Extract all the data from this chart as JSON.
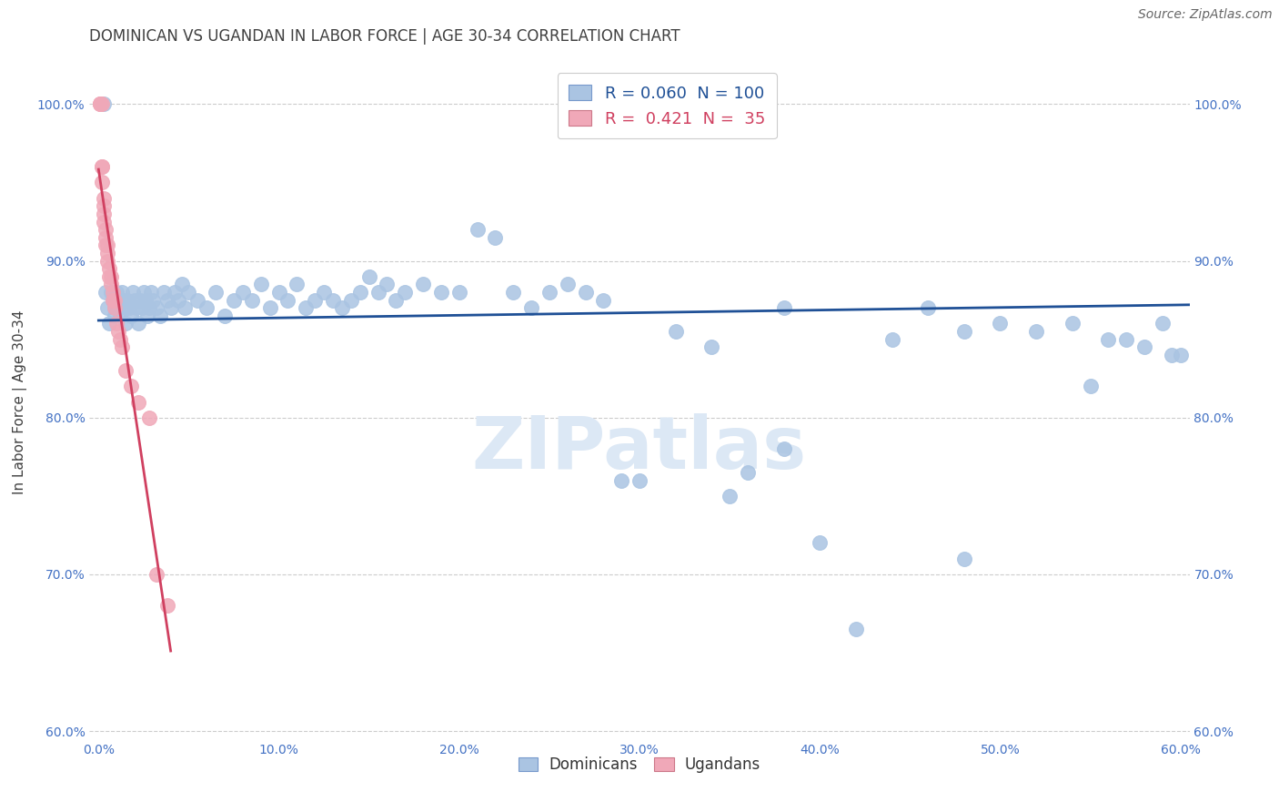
{
  "title": "DOMINICAN VS UGANDAN IN LABOR FORCE | AGE 30-34 CORRELATION CHART",
  "source": "Source: ZipAtlas.com",
  "ylabel": "In Labor Force | Age 30-34",
  "xlabel": "",
  "xlim": [
    -0.005,
    0.605
  ],
  "ylim": [
    0.595,
    1.025
  ],
  "xticks": [
    0.0,
    0.1,
    0.2,
    0.3,
    0.4,
    0.5,
    0.6
  ],
  "yticks": [
    0.6,
    0.7,
    0.8,
    0.9,
    1.0
  ],
  "ytick_labels": [
    "60.0%",
    "70.0%",
    "80.0%",
    "90.0%",
    "100.0%"
  ],
  "xtick_labels": [
    "0.0%",
    "10.0%",
    "20.0%",
    "30.0%",
    "40.0%",
    "50.0%",
    "60.0%"
  ],
  "dominican_color": "#aac4e2",
  "ugandan_color": "#f0a8b8",
  "trendline_dominican_color": "#1f5096",
  "trendline_ugandan_color": "#d04060",
  "R_dominican": 0.06,
  "N_dominican": 100,
  "R_ugandan": 0.421,
  "N_ugandan": 35,
  "legend_label_dominicans": "Dominicans",
  "legend_label_ugandans": "Ugandans",
  "dominican_x": [
    0.003,
    0.004,
    0.005,
    0.006,
    0.007,
    0.008,
    0.009,
    0.009,
    0.01,
    0.01,
    0.011,
    0.012,
    0.013,
    0.014,
    0.015,
    0.015,
    0.016,
    0.017,
    0.018,
    0.019,
    0.02,
    0.021,
    0.022,
    0.023,
    0.024,
    0.025,
    0.026,
    0.027,
    0.028,
    0.029,
    0.03,
    0.032,
    0.034,
    0.036,
    0.038,
    0.04,
    0.042,
    0.044,
    0.046,
    0.048,
    0.05,
    0.055,
    0.06,
    0.065,
    0.07,
    0.075,
    0.08,
    0.085,
    0.09,
    0.095,
    0.1,
    0.105,
    0.11,
    0.115,
    0.12,
    0.125,
    0.13,
    0.135,
    0.14,
    0.145,
    0.15,
    0.155,
    0.16,
    0.165,
    0.17,
    0.18,
    0.19,
    0.2,
    0.21,
    0.22,
    0.23,
    0.24,
    0.25,
    0.26,
    0.27,
    0.28,
    0.29,
    0.3,
    0.32,
    0.34,
    0.35,
    0.36,
    0.38,
    0.4,
    0.42,
    0.44,
    0.46,
    0.48,
    0.5,
    0.52,
    0.54,
    0.55,
    0.56,
    0.57,
    0.58,
    0.59,
    0.595,
    0.6,
    0.48,
    0.38
  ],
  "dominican_y": [
    1.0,
    0.88,
    0.87,
    0.86,
    0.88,
    0.875,
    0.87,
    0.865,
    0.88,
    0.875,
    0.87,
    0.865,
    0.88,
    0.875,
    0.87,
    0.86,
    0.875,
    0.87,
    0.865,
    0.88,
    0.875,
    0.87,
    0.86,
    0.875,
    0.87,
    0.88,
    0.875,
    0.865,
    0.87,
    0.88,
    0.875,
    0.87,
    0.865,
    0.88,
    0.875,
    0.87,
    0.88,
    0.875,
    0.885,
    0.87,
    0.88,
    0.875,
    0.87,
    0.88,
    0.865,
    0.875,
    0.88,
    0.875,
    0.885,
    0.87,
    0.88,
    0.875,
    0.885,
    0.87,
    0.875,
    0.88,
    0.875,
    0.87,
    0.875,
    0.88,
    0.89,
    0.88,
    0.885,
    0.875,
    0.88,
    0.885,
    0.88,
    0.88,
    0.92,
    0.915,
    0.88,
    0.87,
    0.88,
    0.885,
    0.88,
    0.875,
    0.76,
    0.76,
    0.855,
    0.845,
    0.75,
    0.765,
    0.87,
    0.72,
    0.665,
    0.85,
    0.87,
    0.855,
    0.86,
    0.855,
    0.86,
    0.82,
    0.85,
    0.85,
    0.845,
    0.86,
    0.84,
    0.84,
    0.71,
    0.78
  ],
  "ugandan_x": [
    0.001,
    0.001,
    0.001,
    0.002,
    0.002,
    0.002,
    0.002,
    0.003,
    0.003,
    0.003,
    0.003,
    0.004,
    0.004,
    0.004,
    0.005,
    0.005,
    0.005,
    0.006,
    0.006,
    0.007,
    0.007,
    0.008,
    0.008,
    0.009,
    0.009,
    0.01,
    0.011,
    0.012,
    0.013,
    0.015,
    0.018,
    0.022,
    0.028,
    0.032,
    0.038
  ],
  "ugandan_y": [
    1.0,
    1.0,
    1.0,
    1.0,
    0.96,
    0.96,
    0.95,
    0.94,
    0.935,
    0.93,
    0.925,
    0.92,
    0.915,
    0.91,
    0.91,
    0.905,
    0.9,
    0.895,
    0.89,
    0.89,
    0.885,
    0.88,
    0.875,
    0.875,
    0.87,
    0.86,
    0.855,
    0.85,
    0.845,
    0.83,
    0.82,
    0.81,
    0.8,
    0.7,
    0.68
  ],
  "background_color": "#ffffff",
  "grid_color": "#cccccc",
  "axis_color": "#4472c4",
  "title_color": "#404040",
  "watermark_text": "ZIPatlas",
  "watermark_color": "#dce8f5",
  "title_fontsize": 12,
  "axis_label_fontsize": 11,
  "tick_fontsize": 10,
  "legend_fontsize": 11,
  "source_fontsize": 10
}
